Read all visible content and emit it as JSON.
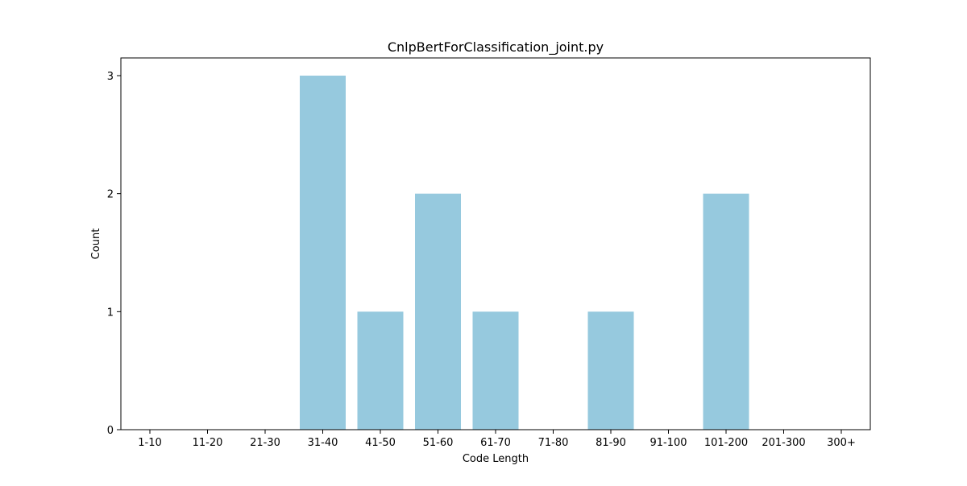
{
  "chart_data": {
    "type": "bar",
    "title": "CnlpBertForClassification_joint.py",
    "xlabel": "Code Length",
    "ylabel": "Count",
    "categories": [
      "1-10",
      "11-20",
      "21-30",
      "31-40",
      "41-50",
      "51-60",
      "61-70",
      "71-80",
      "81-90",
      "91-100",
      "101-200",
      "201-300",
      "300+"
    ],
    "values": [
      0,
      0,
      0,
      3,
      1,
      2,
      1,
      0,
      1,
      0,
      2,
      0,
      0
    ],
    "ylim": [
      0,
      3.15
    ],
    "yticks": [
      0,
      1,
      2,
      3
    ],
    "grid": false,
    "legend": "none",
    "bar_color": "#96c9de"
  }
}
